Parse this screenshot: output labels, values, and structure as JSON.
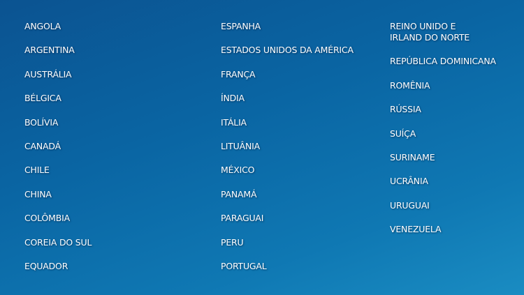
{
  "columns": [
    [
      "ANGOLA",
      "ARGENTINA",
      "AUSTRÁLIA",
      "BÉLGICA",
      "BOLÍVIA",
      "CANADÁ",
      "CHILE",
      "CHINA",
      "COLÔMBIA",
      "COREIA DO SUL",
      "EQUADOR"
    ],
    [
      "ESPANHA",
      "ESTADOS UNIDOS DA AMÉRICA",
      "FRANÇA",
      "ÍNDIA",
      "ITÁLIA",
      "LITUÂNIA",
      "MÉXICO",
      "PANAMÁ",
      "PARAGUAI",
      "PERU",
      "PORTUGAL"
    ],
    [
      "REINO UNIDO E\nIRLAND DO NORTE",
      "REPÚBLICA DOMINICANA",
      "ROMÊNIA",
      "RÚSSIA",
      "SUÍÇA",
      "SURINAME",
      "UCRÂNIA",
      "URUGUAI",
      "VENEZUELA"
    ]
  ],
  "colors": {
    "background_start": "#0b5391",
    "background_end": "#1a8cc2",
    "text": "#ffffff"
  }
}
